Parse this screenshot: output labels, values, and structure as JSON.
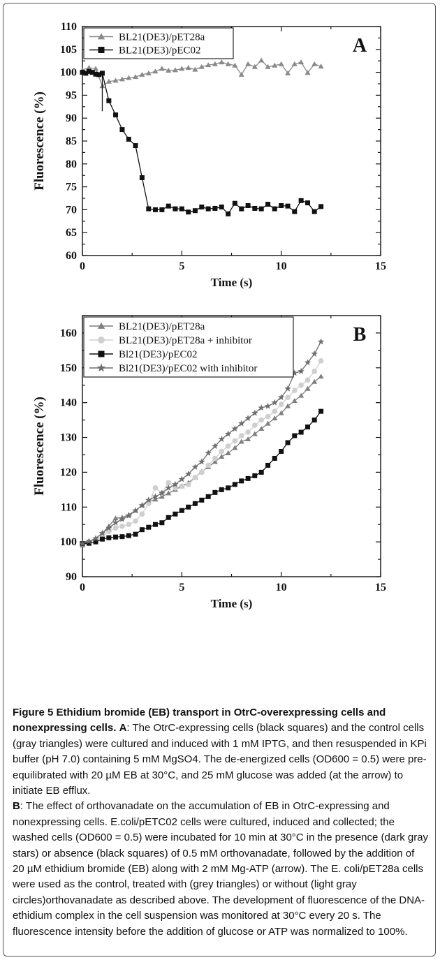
{
  "chart_data": [
    {
      "type": "line",
      "panel_label": "A",
      "xlabel": "Time (s)",
      "ylabel": "Fluorescence (%)",
      "xlim": [
        0,
        15
      ],
      "ylim": [
        60,
        110
      ],
      "x_ticks": [
        0,
        5,
        10,
        15
      ],
      "y_ticks": [
        60,
        65,
        70,
        75,
        80,
        85,
        90,
        95,
        100,
        105,
        110
      ],
      "legend_position": "top-left",
      "arrow": {
        "x": 1.0,
        "y_from": 99.5,
        "y_to": 91.5
      },
      "series": [
        {
          "name": "BL21(DE3)/pET28a",
          "marker": "triangle",
          "color": "#8a8a8a",
          "x": [
            0,
            0.33,
            0.67,
            1.0,
            1.33,
            1.67,
            2.0,
            2.33,
            2.67,
            3.0,
            3.33,
            3.67,
            4.0,
            4.33,
            4.67,
            5.0,
            5.33,
            5.67,
            6.0,
            6.33,
            6.67,
            7.0,
            7.33,
            7.67,
            8.0,
            8.33,
            8.67,
            9.0,
            9.33,
            9.67,
            10.0,
            10.33,
            10.67,
            11.0,
            11.33,
            11.67,
            12.0
          ],
          "y": [
            100.5,
            101.0,
            100.8,
            97.0,
            98.0,
            98.2,
            98.5,
            98.8,
            99.0,
            99.5,
            99.8,
            100.2,
            100.8,
            100.4,
            100.5,
            100.8,
            101.0,
            100.6,
            101.2,
            101.6,
            101.8,
            102.2,
            101.8,
            101.5,
            99.5,
            101.8,
            101.2,
            102.6,
            101.2,
            101.5,
            101.8,
            99.8,
            101.8,
            102.2,
            99.9,
            101.8,
            101.3
          ]
        },
        {
          "name": "BL21(DE3)/pEC02",
          "marker": "square",
          "color": "#111111",
          "x": [
            0,
            0.17,
            0.33,
            0.5,
            0.67,
            0.83,
            1.0,
            1.33,
            1.67,
            2.0,
            2.33,
            2.67,
            3.0,
            3.33,
            3.67,
            4.0,
            4.33,
            4.67,
            5.0,
            5.33,
            5.67,
            6.0,
            6.33,
            6.67,
            7.0,
            7.33,
            7.67,
            8.0,
            8.33,
            8.67,
            9.0,
            9.33,
            9.67,
            10.0,
            10.33,
            10.67,
            11.0,
            11.33,
            11.67,
            12.0
          ],
          "y": [
            100.0,
            99.8,
            100.2,
            100.0,
            99.6,
            99.5,
            99.8,
            93.8,
            90.7,
            87.5,
            85.4,
            84.0,
            77.0,
            70.2,
            70.0,
            70.0,
            70.8,
            70.2,
            70.2,
            69.5,
            69.8,
            70.6,
            70.2,
            70.3,
            70.6,
            69.1,
            71.4,
            70.2,
            70.9,
            70.3,
            70.2,
            71.2,
            70.2,
            70.9,
            70.8,
            69.6,
            72.0,
            71.5,
            69.6,
            70.7
          ]
        }
      ]
    },
    {
      "type": "line",
      "panel_label": "B",
      "xlabel": "Time (s)",
      "ylabel": "Fluorescence (%)",
      "xlim": [
        0,
        15
      ],
      "ylim": [
        90,
        165
      ],
      "x_ticks": [
        0,
        5,
        10,
        15
      ],
      "y_ticks": [
        90,
        100,
        110,
        120,
        130,
        140,
        150,
        160
      ],
      "legend_position": "top-left",
      "series": [
        {
          "name": "BL21(DE3)/pET28a",
          "marker": "triangle",
          "color": "#7f7f7f",
          "x": [
            0,
            0.33,
            0.67,
            1.0,
            1.33,
            1.67,
            2.0,
            2.33,
            2.67,
            3.0,
            3.33,
            3.67,
            4.0,
            4.33,
            4.67,
            5.0,
            5.33,
            5.67,
            6.0,
            6.33,
            6.67,
            7.0,
            7.33,
            7.67,
            8.0,
            8.33,
            8.67,
            9.0,
            9.33,
            9.67,
            10.0,
            10.33,
            10.67,
            11.0,
            11.33,
            11.67,
            12.0
          ],
          "y": [
            99.0,
            100.0,
            101.0,
            102.5,
            104.5,
            106.8,
            107.0,
            107.8,
            109.0,
            110.5,
            111.5,
            112.2,
            113.0,
            114.0,
            115.0,
            116.0,
            117.0,
            118.5,
            120.2,
            121.5,
            123.0,
            124.5,
            125.5,
            127.0,
            128.8,
            129.5,
            131.0,
            132.5,
            134.0,
            135.5,
            137.0,
            139.0,
            140.5,
            142.0,
            144.0,
            146.0,
            147.5
          ]
        },
        {
          "name": "BL21(DE3)/pET28a + inhibitor",
          "marker": "circle",
          "color": "#cfcfcf",
          "x": [
            0,
            0.33,
            0.67,
            1.0,
            1.33,
            1.67,
            2.0,
            2.33,
            2.67,
            3.0,
            3.33,
            3.67,
            4.0,
            4.33,
            4.67,
            5.0,
            5.33,
            5.67,
            6.0,
            6.33,
            6.67,
            7.0,
            7.33,
            7.67,
            8.0,
            8.33,
            8.67,
            9.0,
            9.33,
            9.67,
            10.0,
            10.33,
            10.67,
            11.0,
            11.33,
            11.67,
            12.0
          ],
          "y": [
            99.5,
            100.0,
            100.5,
            101.5,
            103.0,
            104.0,
            104.5,
            105.0,
            106.0,
            108.0,
            111.0,
            115.5,
            114.0,
            117.0,
            115.5,
            116.0,
            116.5,
            118.5,
            120.0,
            122.0,
            124.0,
            126.0,
            127.5,
            129.0,
            130.5,
            131.5,
            133.5,
            135.0,
            136.0,
            137.5,
            139.5,
            141.5,
            143.5,
            145.0,
            146.5,
            149.0,
            152.0
          ]
        },
        {
          "name": "Bl21(DE3)/pEC02",
          "marker": "square",
          "color": "#111111",
          "x": [
            0,
            0.33,
            0.67,
            1.0,
            1.33,
            1.67,
            2.0,
            2.33,
            2.67,
            3.0,
            3.33,
            3.67,
            4.0,
            4.33,
            4.67,
            5.0,
            5.33,
            5.67,
            6.0,
            6.33,
            6.67,
            7.0,
            7.33,
            7.67,
            8.0,
            8.33,
            8.67,
            9.0,
            9.33,
            9.67,
            10.0,
            10.33,
            10.67,
            11.0,
            11.33,
            11.67,
            12.0
          ],
          "y": [
            99.5,
            99.6,
            100.0,
            100.8,
            101.2,
            101.4,
            101.5,
            101.8,
            102.2,
            103.5,
            104.2,
            105.0,
            105.5,
            107.0,
            108.0,
            109.0,
            110.0,
            111.0,
            112.0,
            113.0,
            114.2,
            115.0,
            115.5,
            116.5,
            117.5,
            118.2,
            119.0,
            120.0,
            122.0,
            124.0,
            126.0,
            128.5,
            130.5,
            131.5,
            133.0,
            135.0,
            137.5
          ]
        },
        {
          "name": "Bl21(DE3)/pEC02 with inhibitor",
          "marker": "star",
          "color": "#6e6e6e",
          "x": [
            0,
            0.33,
            0.67,
            1.0,
            1.33,
            1.67,
            2.0,
            2.33,
            2.67,
            3.0,
            3.33,
            3.67,
            4.0,
            4.33,
            4.67,
            5.0,
            5.33,
            5.67,
            6.0,
            6.33,
            6.67,
            7.0,
            7.33,
            7.67,
            8.0,
            8.33,
            8.67,
            9.0,
            9.33,
            9.67,
            10.0,
            10.33,
            10.67,
            11.0,
            11.33,
            11.67,
            12.0
          ],
          "y": [
            99.5,
            100.2,
            101.0,
            102.5,
            104.0,
            105.5,
            106.5,
            107.5,
            109.0,
            110.5,
            112.0,
            113.0,
            114.0,
            115.5,
            116.5,
            118.0,
            119.5,
            121.5,
            123.0,
            125.5,
            127.5,
            129.5,
            131.0,
            132.5,
            134.0,
            135.5,
            137.0,
            138.5,
            139.0,
            140.0,
            141.5,
            144.0,
            148.5,
            149.0,
            151.5,
            154.0,
            157.5
          ]
        }
      ]
    }
  ],
  "caption": {
    "figure_label": "Figure 5",
    "title": "Ethidium bromide (EB) transport in OtrC-overexpressing cells and nonexpressing cells.",
    "part_a_label": "A",
    "part_a_text": ": The OtrC-expressing cells (black squares) and the control cells (gray triangles) were cultured and induced with 1 mM IPTG, and then resuspended in KPi buffer (pH 7.0) containing 5 mM MgSO4. The de-energized cells (OD600 = 0.5) were pre-equilibrated with 20 µM EB at 30°C, and 25 mM glucose was added (at the arrow) to initiate EB efflux.",
    "part_b_label": "B",
    "part_b_text": ": The effect of orthovanadate on the accumulation of EB in OtrC-expressing and nonexpressing cells. E.coli/pETC02 cells were cultured, induced and collected; the washed cells (OD600 = 0.5) were incubated for 10 min at 30°C in the presence (dark gray stars) or absence (black squares) of 0.5 mM orthovanadate, followed by the addition of 20 µM ethidium bromide (EB) along with 2 mM Mg-ATP (arrow). The E. coli/pET28a cells were used as the control, treated with (grey triangles) or without (light gray circles)orthovanadate as described above. The development of fluorescence of the DNA-ethidium complex in the cell suspension was monitored at 30°C every 20 s. The fluorescence intensity before the addition of glucose or ATP was normalized to 100%."
  }
}
